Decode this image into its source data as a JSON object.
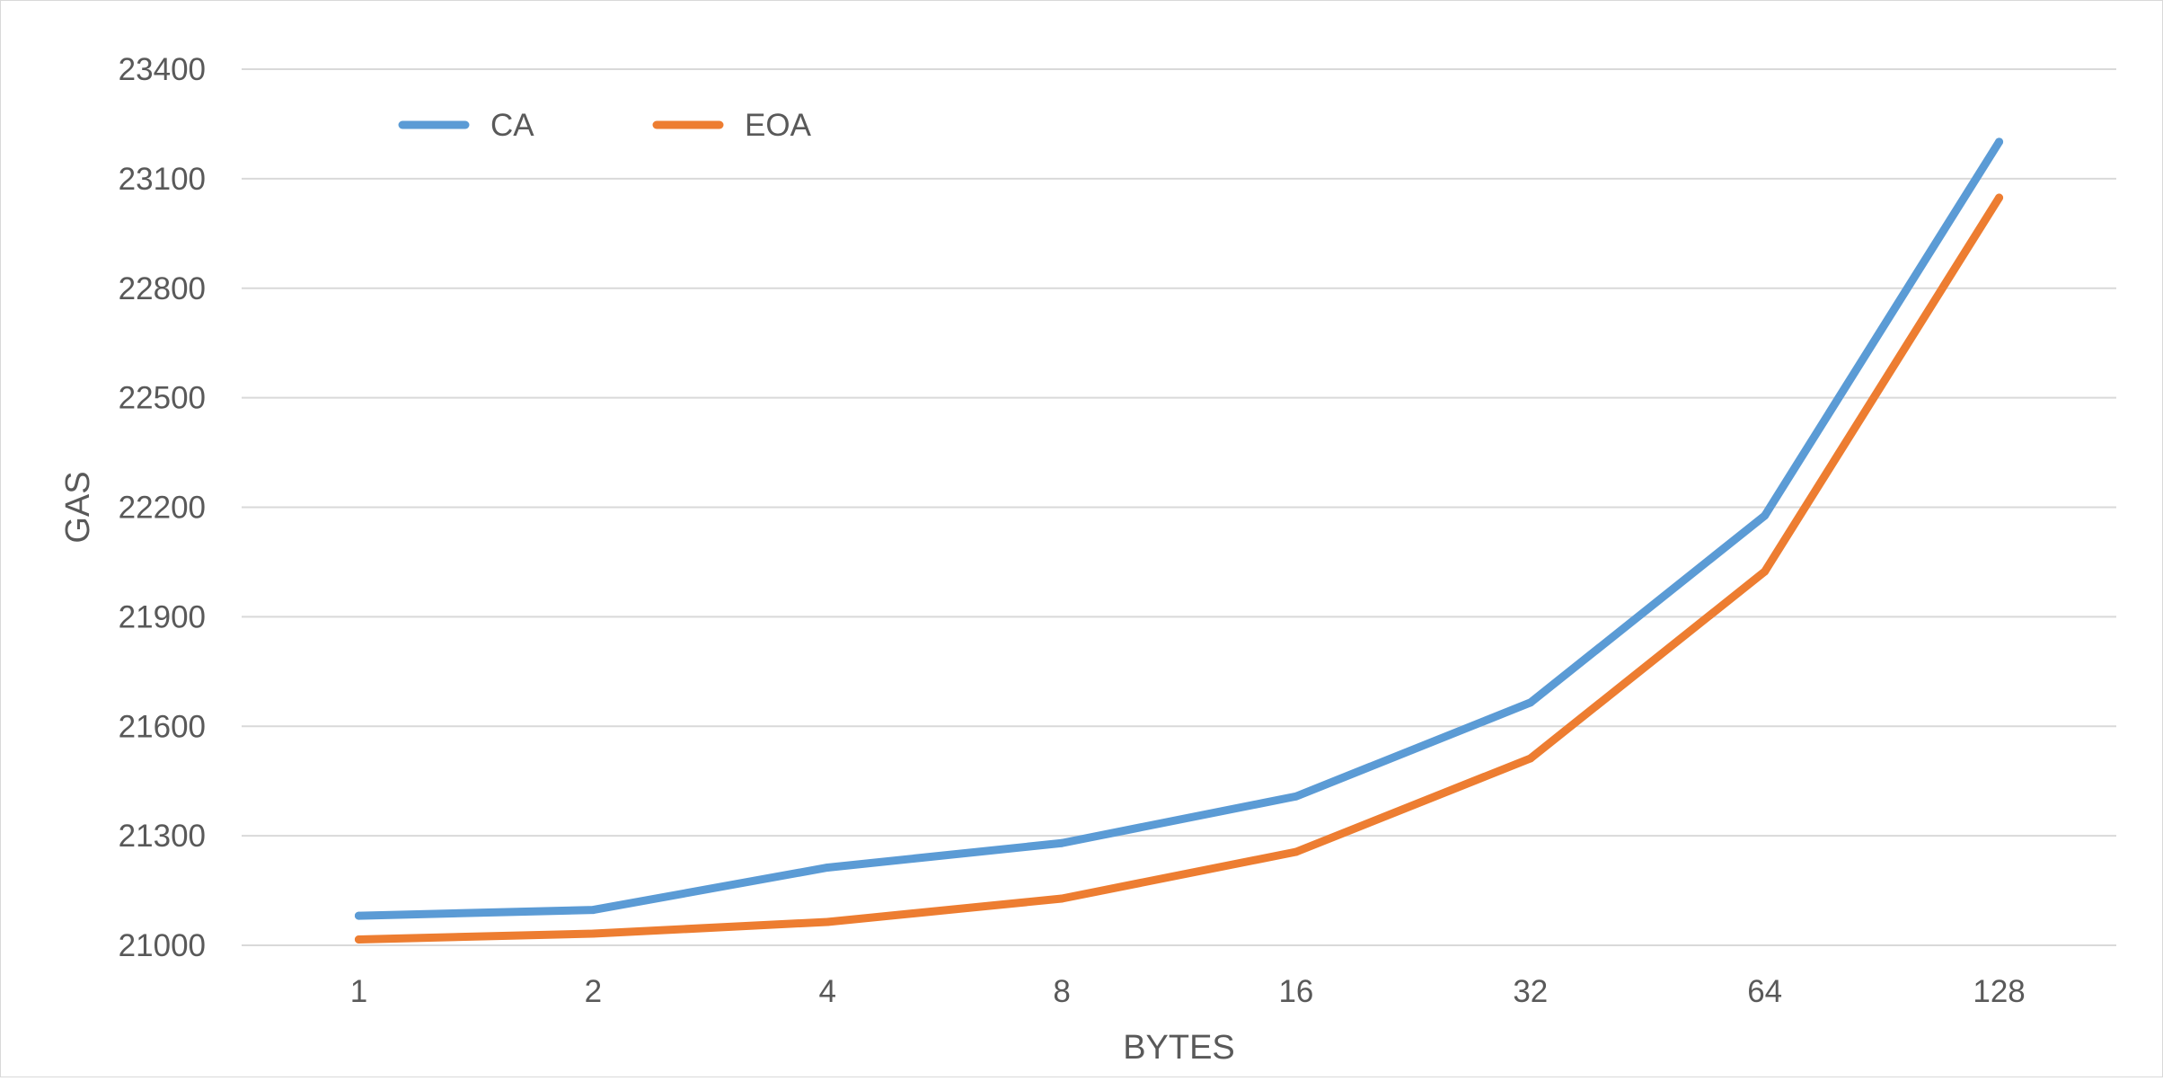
{
  "chart_data": {
    "type": "line",
    "title": "",
    "xlabel": "BYTES",
    "ylabel": "GAS",
    "categories": [
      "1",
      "2",
      "4",
      "8",
      "16",
      "32",
      "64",
      "128"
    ],
    "ylim": [
      21000,
      23400
    ],
    "yticks": [
      21000,
      21300,
      21600,
      21900,
      22200,
      22500,
      22800,
      23100,
      23400
    ],
    "grid": true,
    "legend_position": "top-left",
    "series": [
      {
        "name": "CA",
        "color": "#5b9bd5",
        "values": [
          21081,
          21097,
          21213,
          21280,
          21408,
          21665,
          22177,
          23201
        ]
      },
      {
        "name": "EOA",
        "color": "#ed7d31",
        "values": [
          21016,
          21032,
          21064,
          21128,
          21256,
          21512,
          22024,
          23048
        ]
      }
    ]
  }
}
